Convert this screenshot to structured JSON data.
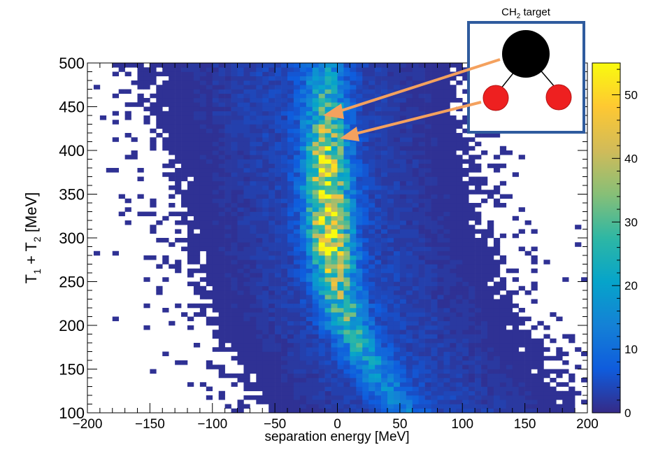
{
  "chart_data": {
    "type": "heatmap",
    "title": "",
    "xlabel": "separation energy [MeV]",
    "ylabel": "T1 + T2 [MeV]",
    "ylabel_parts": {
      "t": "T",
      "sub1": "1",
      "plus": " + T",
      "sub2": "2",
      "unit": " [MeV]"
    },
    "xlim": [
      -200,
      200
    ],
    "ylim": [
      100,
      500
    ],
    "x_ticks": [
      -200,
      -150,
      -100,
      -50,
      0,
      50,
      100,
      150,
      200
    ],
    "y_ticks": [
      100,
      150,
      200,
      250,
      300,
      350,
      400,
      450,
      500
    ],
    "bin_width_x": 5,
    "bin_width_y": 5,
    "colorbar": {
      "range": [
        0,
        55
      ],
      "ticks": [
        0,
        10,
        20,
        30,
        40,
        50
      ],
      "palette": "kBird",
      "colors": [
        "#352a87",
        "#0f5cdd",
        "#1481d6",
        "#06a4ca",
        "#2eb7a4",
        "#87bf77",
        "#d1bb59",
        "#fec832",
        "#f9fb0e"
      ]
    },
    "ridge": {
      "description": "counts peak along a band; center x (MeV) as a function of y (MeV)",
      "center_points": [
        [
          100,
          55
        ],
        [
          150,
          28
        ],
        [
          200,
          8
        ],
        [
          250,
          -2
        ],
        [
          300,
          -6
        ],
        [
          350,
          -8
        ],
        [
          400,
          -9
        ],
        [
          450,
          -10
        ],
        [
          500,
          -10
        ]
      ],
      "peak_counts": [
        [
          100,
          8
        ],
        [
          150,
          14
        ],
        [
          200,
          22
        ],
        [
          250,
          30
        ],
        [
          300,
          45
        ],
        [
          330,
          46
        ],
        [
          350,
          42
        ],
        [
          400,
          38
        ],
        [
          450,
          22
        ],
        [
          500,
          12
        ]
      ]
    },
    "inset": {
      "label_main": "CH",
      "label_sub": "2",
      "label_rest": " target",
      "atoms": [
        {
          "name": "carbon",
          "color": "#000000"
        },
        {
          "name": "hydrogen-left",
          "color": "#ee2020"
        },
        {
          "name": "hydrogen-right",
          "color": "#ee2020"
        }
      ],
      "frame_color": "#2f5b9e",
      "arrow_color": "#f4a15e"
    }
  }
}
